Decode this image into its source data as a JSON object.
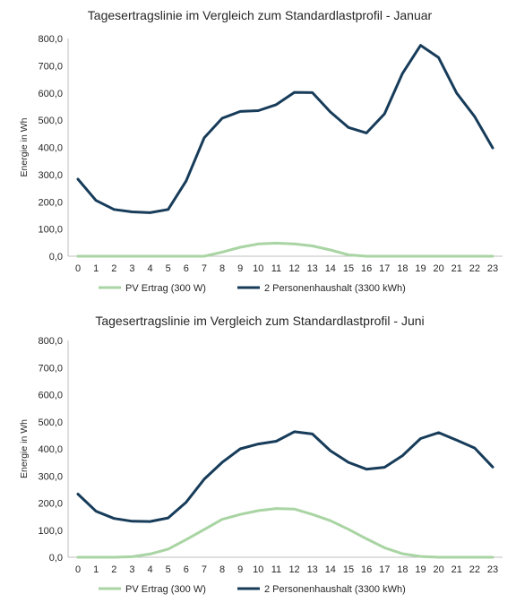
{
  "colors": {
    "pv": "#a9d4a3",
    "household": "#173c5a",
    "axis": "#bfbfbf"
  },
  "chart_data": [
    {
      "type": "line",
      "title": "Tagesertragslinie im Vergleich zum Standardlastprofil - Januar",
      "xlabel": "",
      "ylabel": "Energie in Wh",
      "ylim": [
        0,
        800
      ],
      "yticks": [
        "0,0",
        "100,0",
        "200,0",
        "300,0",
        "400,0",
        "500,0",
        "600,0",
        "700,0",
        "800,0"
      ],
      "x": [
        "0",
        "1",
        "2",
        "3",
        "4",
        "5",
        "6",
        "7",
        "8",
        "9",
        "10",
        "11",
        "12",
        "13",
        "14",
        "15",
        "16",
        "17",
        "18",
        "19",
        "20",
        "21",
        "22",
        "23"
      ],
      "grid": false,
      "legend": "bottom",
      "series": [
        {
          "name": "PV Ertrag (300 W)",
          "values": [
            0,
            0,
            0,
            0,
            0,
            0,
            0,
            0,
            15,
            33,
            45,
            48,
            45,
            38,
            23,
            5,
            0,
            0,
            0,
            0,
            0,
            0,
            0,
            0
          ]
        },
        {
          "name": "2 Personenhaushalt (3300 kWh)",
          "values": [
            283,
            205,
            172,
            163,
            160,
            172,
            277,
            435,
            507,
            532,
            535,
            557,
            602,
            601,
            530,
            473,
            453,
            523,
            672,
            775,
            730,
            600,
            513,
            398
          ]
        }
      ]
    },
    {
      "type": "line",
      "title": "Tagesertragslinie im Vergleich zum Standardlastprofil - Juni",
      "xlabel": "",
      "ylabel": "Energie in Wh",
      "ylim": [
        0,
        800
      ],
      "yticks": [
        "0,0",
        "100,0",
        "200,0",
        "300,0",
        "400,0",
        "500,0",
        "600,0",
        "700,0",
        "800,0"
      ],
      "x": [
        "0",
        "1",
        "2",
        "3",
        "4",
        "5",
        "6",
        "7",
        "8",
        "9",
        "10",
        "11",
        "12",
        "13",
        "14",
        "15",
        "16",
        "17",
        "18",
        "19",
        "20",
        "21",
        "22",
        "23"
      ],
      "grid": false,
      "legend": "bottom",
      "series": [
        {
          "name": "PV Ertrag (300 W)",
          "values": [
            0,
            0,
            0,
            2,
            12,
            30,
            65,
            102,
            140,
            158,
            172,
            180,
            178,
            158,
            135,
            103,
            68,
            35,
            13,
            3,
            0,
            0,
            0,
            0
          ]
        },
        {
          "name": "2 Personenhaushalt (3300 kWh)",
          "values": [
            233,
            170,
            143,
            133,
            132,
            145,
            203,
            288,
            350,
            400,
            418,
            428,
            463,
            455,
            393,
            350,
            325,
            332,
            375,
            438,
            460,
            432,
            403,
            333
          ]
        }
      ]
    }
  ]
}
